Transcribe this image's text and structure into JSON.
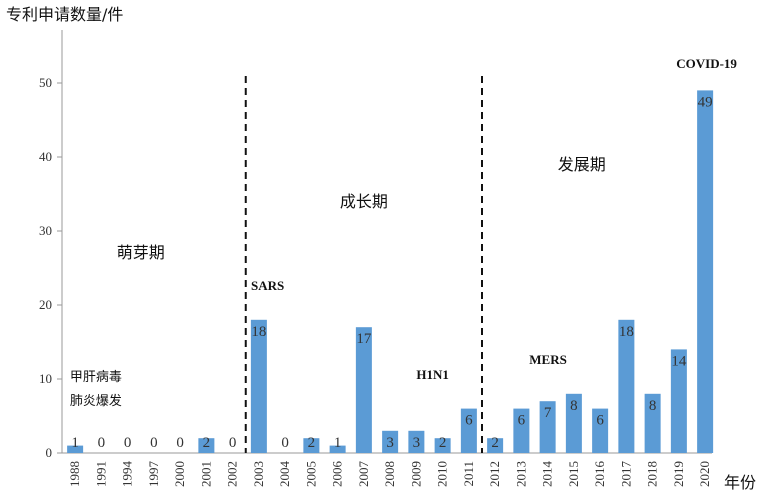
{
  "chart_data": {
    "type": "bar",
    "ylabel": "专利申请数量/件",
    "xlabel": "年份",
    "ylim": [
      0,
      50
    ],
    "yticks": [
      0,
      10,
      20,
      30,
      40,
      50
    ],
    "grid": false,
    "bar_color": "#5B9BD5",
    "categories": [
      "1988",
      "1991",
      "1994",
      "1997",
      "2000",
      "2001",
      "2002",
      "2003",
      "2004",
      "2005",
      "2006",
      "2007",
      "2008",
      "2009",
      "2010",
      "2011",
      "2012",
      "2013",
      "2014",
      "2015",
      "2016",
      "2017",
      "2018",
      "2019",
      "2020"
    ],
    "values": [
      1,
      0,
      0,
      0,
      0,
      2,
      0,
      18,
      0,
      2,
      1,
      17,
      3,
      3,
      2,
      6,
      2,
      6,
      7,
      8,
      6,
      18,
      8,
      14,
      49
    ],
    "phases": [
      {
        "name": "萌芽期",
        "x_center": 2.5
      },
      {
        "name": "成长期",
        "x_center": 11.0
      },
      {
        "name": "发展期",
        "x_center": 19.3
      }
    ],
    "dividers": [
      6.5,
      15.5
    ],
    "annotations": [
      {
        "text": "甲肝病毒",
        "line2": "肺炎爆发",
        "kind": "cn",
        "x": 0.3,
        "y": 10
      },
      {
        "text": "SARS",
        "kind": "event",
        "x": 7.2,
        "y": 22
      },
      {
        "text": "H1N1",
        "kind": "event",
        "x": 13.5,
        "y": 10
      },
      {
        "text": "MERS",
        "kind": "event",
        "x": 17.8,
        "y": 12
      },
      {
        "text": "COVID-19",
        "kind": "event",
        "x": 23.4,
        "y": 52
      }
    ]
  }
}
